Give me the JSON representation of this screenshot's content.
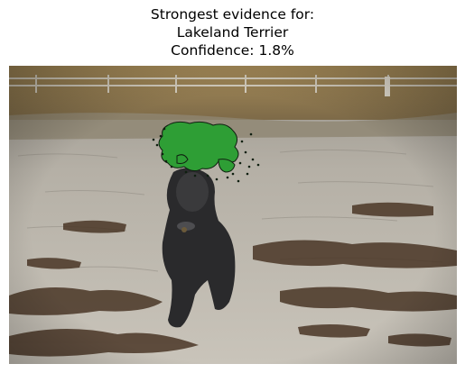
{
  "title": {
    "line1": "Strongest evidence for:",
    "line2": "Lakeland Terrier",
    "line3": "Confidence: 1.8%"
  },
  "image": {
    "subject": "dog on beach",
    "overlay_color": "#2e9e35"
  }
}
